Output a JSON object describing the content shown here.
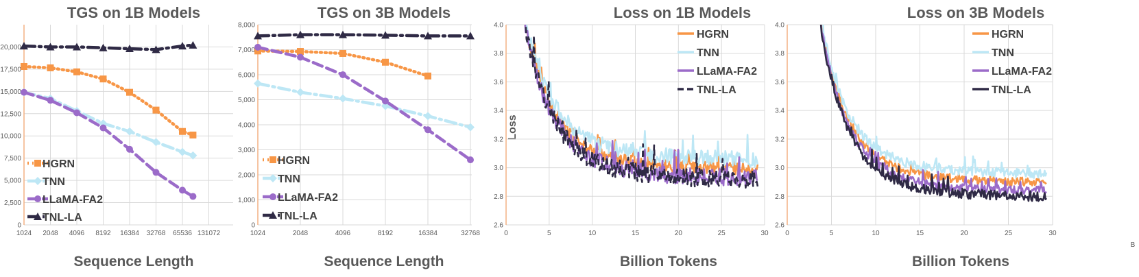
{
  "colors": {
    "HGRN": "#f79646",
    "TNN": "#bde7f5",
    "LLaMA-FA2": "#9b6bc9",
    "TNL-LA": "#2f2a45",
    "text": "#595959",
    "grid": "#d9d9d9"
  },
  "chart_data": [
    {
      "type": "line",
      "title": "TGS on 1B Models",
      "xlabel": "Sequence Length",
      "ylabel": "",
      "x_scale": "categorical",
      "categories": [
        "1024",
        "2048",
        "4096",
        "8192",
        "16384",
        "32768",
        "65536",
        "131072"
      ],
      "ylim": [
        0,
        22500
      ],
      "yticks": [
        "0",
        "2,500",
        "5,000",
        "7,500",
        "10,000",
        "12,500",
        "15,000",
        "17,500",
        "20,000"
      ],
      "legend_position": "lower-left",
      "series": [
        {
          "name": "HGRN",
          "marker": "square",
          "dash": "dot",
          "x": [
            0,
            1,
            2,
            3,
            4,
            5,
            6,
            6.4
          ],
          "values": [
            17800,
            17650,
            17200,
            16400,
            14900,
            12900,
            10500,
            10100
          ]
        },
        {
          "name": "TNN",
          "marker": "diamond",
          "dash": "dashdot",
          "x": [
            0,
            1,
            2,
            3,
            4,
            5,
            6,
            6.4
          ],
          "values": [
            14900,
            14200,
            12800,
            11400,
            10500,
            9300,
            8200,
            7800
          ]
        },
        {
          "name": "LLaMA-FA2",
          "marker": "circle",
          "dash": "dash",
          "x": [
            0,
            1,
            2,
            3,
            4,
            5,
            6,
            6.4
          ],
          "values": [
            14900,
            14000,
            12600,
            10900,
            8500,
            5900,
            3900,
            3200
          ]
        },
        {
          "name": "TNL-LA",
          "marker": "triangle",
          "dash": "dashdot",
          "x": [
            0,
            1,
            2,
            3,
            4,
            5,
            6,
            6.4
          ],
          "values": [
            20100,
            20000,
            20000,
            19900,
            19800,
            19700,
            20100,
            20200
          ]
        }
      ]
    },
    {
      "type": "line",
      "title": "TGS on 3B Models",
      "xlabel": "Sequence Length",
      "ylabel": "",
      "x_scale": "categorical",
      "categories": [
        "1024",
        "2048",
        "4096",
        "8192",
        "16384",
        "32768"
      ],
      "ylim": [
        0,
        8000
      ],
      "yticks": [
        "0",
        "1,000",
        "2,000",
        "3,000",
        "4,000",
        "5,000",
        "6,000",
        "7,000",
        "8,000"
      ],
      "legend_position": "lower-left",
      "series": [
        {
          "name": "HGRN",
          "marker": "square",
          "dash": "dot",
          "x": [
            0,
            1,
            2,
            3,
            4
          ],
          "values": [
            6950,
            6930,
            6850,
            6500,
            5950
          ]
        },
        {
          "name": "TNN",
          "marker": "diamond",
          "dash": "dashdot",
          "x": [
            0,
            1,
            2,
            3,
            4,
            5
          ],
          "values": [
            5650,
            5300,
            5050,
            4750,
            4350,
            3900
          ]
        },
        {
          "name": "LLaMA-FA2",
          "marker": "circle",
          "dash": "dash",
          "x": [
            0,
            1,
            2,
            3,
            4,
            5
          ],
          "values": [
            7100,
            6700,
            6000,
            4950,
            3800,
            2600
          ]
        },
        {
          "name": "TNL-LA",
          "marker": "triangle",
          "dash": "dashdot",
          "x": [
            0,
            1,
            2,
            3,
            4,
            5
          ],
          "values": [
            7550,
            7600,
            7600,
            7580,
            7550,
            7550
          ]
        }
      ]
    },
    {
      "type": "line",
      "title": "Loss on 1B Models",
      "xlabel": "Billion Tokens",
      "ylabel": "Loss",
      "x_scale": "linear",
      "xlim": [
        0,
        30
      ],
      "xticks": [
        "0",
        "5",
        "10",
        "15",
        "20",
        "25",
        "30"
      ],
      "ylim": [
        2.6,
        4.0
      ],
      "yticks": [
        "2.6",
        "2.8",
        "3.0",
        "3.2",
        "3.4",
        "3.6",
        "3.8",
        "4.0"
      ],
      "legend_position": "top-right",
      "curve_model": {
        "start_x": 1.3,
        "end_x": 29.2,
        "start_loss": 4.0
      },
      "series": [
        {
          "name": "HGRN",
          "style": "solid",
          "final": 2.99,
          "noise": 0.045,
          "seed": 11
        },
        {
          "name": "TNN",
          "style": "solid",
          "final": 3.06,
          "noise": 0.055,
          "seed": 23
        },
        {
          "name": "LLaMA-FA2",
          "style": "solid",
          "final": 2.93,
          "noise": 0.06,
          "seed": 37
        },
        {
          "name": "TNL-LA",
          "style": "dashed",
          "final": 2.92,
          "noise": 0.065,
          "seed": 41
        }
      ]
    },
    {
      "type": "line",
      "title": "Loss on 3B Models",
      "xlabel": "Billion Tokens",
      "ylabel": "",
      "x_scale": "linear",
      "xlim": [
        0,
        30
      ],
      "xticks": [
        "0",
        "5",
        "10",
        "15",
        "20",
        "25",
        "30"
      ],
      "ylim": [
        2.6,
        4.0
      ],
      "yticks": [
        "2.6",
        "2.8",
        "3.0",
        "3.2",
        "3.4",
        "3.6",
        "3.8",
        "4.0"
      ],
      "extra_label": "B",
      "legend_position": "top-right",
      "curve_model": {
        "start_x": 3.0,
        "end_x": 29.3,
        "start_loss": 4.0
      },
      "series": [
        {
          "name": "HGRN",
          "style": "solid",
          "final": 2.9,
          "noise": 0.03,
          "seed": 53
        },
        {
          "name": "TNN",
          "style": "solid",
          "final": 2.96,
          "noise": 0.035,
          "seed": 67
        },
        {
          "name": "LLaMA-FA2",
          "style": "solid",
          "final": 2.84,
          "noise": 0.03,
          "seed": 71
        },
        {
          "name": "TNL-LA",
          "style": "solid",
          "final": 2.8,
          "noise": 0.035,
          "seed": 89
        }
      ]
    }
  ]
}
